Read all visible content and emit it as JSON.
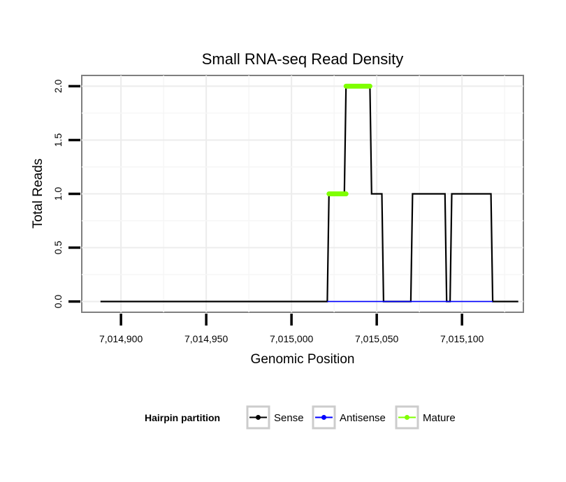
{
  "chart_data": {
    "type": "line",
    "title": "Small RNA-seq Read Density",
    "xlabel": "Genomic Position",
    "ylabel": "Total Reads",
    "xlim": [
      7014877,
      7015136
    ],
    "ylim": [
      -0.1,
      2.1
    ],
    "x_ticks": [
      7014900,
      7014950,
      7015000,
      7015050,
      7015100
    ],
    "x_tick_labels": [
      "7,014,900",
      "7,014,950",
      "7,015,000",
      "7,015,050",
      "7,015,100"
    ],
    "y_ticks": [
      0.0,
      0.5,
      1.0,
      1.5,
      2.0
    ],
    "y_tick_labels": [
      "0.0",
      "0.5",
      "1.0",
      "1.5",
      "2.0"
    ],
    "legend_title": "Hairpin partition",
    "legend_position": "bottom",
    "series": [
      {
        "name": "Sense",
        "color": "#000000",
        "x": [
          7014888,
          7015021,
          7015022,
          7015031,
          7015032,
          7015046,
          7015047,
          7015053,
          7015054,
          7015070,
          7015071,
          7015090,
          7015091,
          7015093,
          7015094,
          7015117,
          7015118,
          7015133
        ],
        "values": [
          0,
          0,
          1,
          1,
          2,
          2,
          1,
          1,
          0,
          0,
          1,
          1,
          0,
          0,
          1,
          1,
          0,
          0
        ]
      },
      {
        "name": "Antisense",
        "color": "#0000ff",
        "x": [
          7015021,
          7015118
        ],
        "values": [
          0,
          0
        ]
      },
      {
        "name": "Mature",
        "color": "#7fff00",
        "segments": [
          {
            "x": [
              7015022,
              7015032
            ],
            "value": 1
          },
          {
            "x": [
              7015032,
              7015046
            ],
            "value": 2
          }
        ]
      }
    ]
  }
}
